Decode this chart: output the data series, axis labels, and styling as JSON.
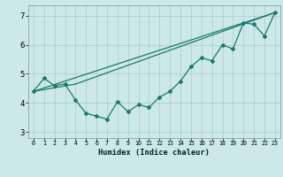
{
  "title": "",
  "xlabel": "Humidex (Indice chaleur)",
  "background_color": "#cce8e8",
  "grid_color": "#aacccc",
  "line_color": "#1a7a6a",
  "xlim": [
    -0.5,
    23.5
  ],
  "ylim": [
    2.8,
    7.35
  ],
  "yticks": [
    3,
    4,
    5,
    6,
    7
  ],
  "xticks": [
    0,
    1,
    2,
    3,
    4,
    5,
    6,
    7,
    8,
    9,
    10,
    11,
    12,
    13,
    14,
    15,
    16,
    17,
    18,
    19,
    20,
    21,
    22,
    23
  ],
  "series_data": [
    4.4,
    4.85,
    4.6,
    4.65,
    4.1,
    3.65,
    3.55,
    3.45,
    4.05,
    3.7,
    3.95,
    3.85,
    4.2,
    4.4,
    4.75,
    5.25,
    5.55,
    5.45,
    6.0,
    5.85,
    6.75,
    6.7,
    6.3,
    7.1
  ],
  "series_line1": [
    [
      0,
      4.4
    ],
    [
      23,
      7.1
    ]
  ],
  "series_line2": [
    [
      0,
      4.4
    ],
    [
      4,
      4.65
    ],
    [
      23,
      7.1
    ]
  ]
}
